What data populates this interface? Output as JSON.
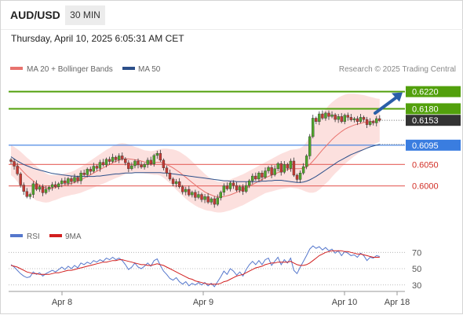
{
  "header": {
    "symbol": "AUD/USD",
    "timeframe": "30 MIN",
    "datetime": "Thursday, April 10, 2025 6:05:31 AM CET"
  },
  "colors": {
    "ma20": "#e8736e",
    "ma50": "#2c4f8a",
    "bands": "#fbd5d3",
    "resistance": "#52a00c",
    "pivot": "#3a7de0",
    "support": "#e8736e",
    "candle_up": "#4fa52a",
    "candle_down": "#c43a33",
    "rsi": "#5577cc",
    "rsi_ma": "#d21f1f",
    "arrow": "#2a5fa8",
    "price_tag": "#333333"
  },
  "chart_data": [
    {
      "type": "candlestick",
      "legend": [
        {
          "label": "MA 20 + Bollinger Bands",
          "color": "#e8736e"
        },
        {
          "label": "MA 50",
          "color": "#2c4f8a"
        }
      ],
      "watermark": "Research © 2025 Trading Central",
      "ylim": [
        0.5915,
        0.6245
      ],
      "x_ticks": [
        "Apr 8",
        "Apr 9",
        "Apr 10",
        "Apr 18"
      ],
      "levels": [
        {
          "value": 0.622,
          "label": "0.6220",
          "kind": "resistance"
        },
        {
          "value": 0.618,
          "label": "0.6180",
          "kind": "resistance"
        },
        {
          "value": 0.6095,
          "label": "0.6095",
          "kind": "pivot"
        },
        {
          "value": 0.605,
          "label": "0.6050",
          "kind": "support"
        },
        {
          "value": 0.6,
          "label": "0.6000",
          "kind": "support"
        }
      ],
      "last_price": {
        "value": 0.6153,
        "label": "0.6153"
      },
      "close": [
        0.6057,
        0.6046,
        0.6028,
        0.6002,
        0.5987,
        0.5975,
        0.598,
        0.6005,
        0.5992,
        0.5998,
        0.5984,
        0.5992,
        0.5997,
        0.6003,
        0.5998,
        0.6005,
        0.6012,
        0.6006,
        0.6017,
        0.601,
        0.602,
        0.6012,
        0.603,
        0.6026,
        0.6039,
        0.6034,
        0.6046,
        0.6041,
        0.6055,
        0.6049,
        0.6062,
        0.6057,
        0.6067,
        0.6061,
        0.607,
        0.6063,
        0.6054,
        0.604,
        0.6047,
        0.6058,
        0.6049,
        0.6044,
        0.605,
        0.606,
        0.6051,
        0.6071,
        0.6076,
        0.606,
        0.6042,
        0.603,
        0.6016,
        0.6005,
        0.601,
        0.5998,
        0.5986,
        0.5992,
        0.5979,
        0.5985,
        0.5973,
        0.598,
        0.5968,
        0.5975,
        0.5962,
        0.597,
        0.5957,
        0.5972,
        0.5985,
        0.6,
        0.5993,
        0.6007,
        0.6001,
        0.599,
        0.5998,
        0.5987,
        0.6001,
        0.6012,
        0.6023,
        0.6016,
        0.603,
        0.602,
        0.6035,
        0.6043,
        0.6026,
        0.604,
        0.6052,
        0.6032,
        0.605,
        0.6041,
        0.6058,
        0.6025,
        0.6015,
        0.603,
        0.6045,
        0.607,
        0.6115,
        0.6158,
        0.615,
        0.6168,
        0.6158,
        0.617,
        0.6162,
        0.6166,
        0.6155,
        0.6162,
        0.615,
        0.6165,
        0.616,
        0.6154,
        0.6157,
        0.615,
        0.616,
        0.6155,
        0.6143,
        0.615,
        0.6147,
        0.6157,
        0.6153
      ],
      "ma20": [
        0.606,
        0.6055,
        0.6048,
        0.604,
        0.6032,
        0.6024,
        0.6018,
        0.6012,
        0.6006,
        0.6002,
        0.5998,
        0.5995,
        0.5994,
        0.5995,
        0.5996,
        0.5998,
        0.6,
        0.6002,
        0.6004,
        0.6006,
        0.6008,
        0.6011,
        0.6014,
        0.6018,
        0.6022,
        0.6026,
        0.603,
        0.6034,
        0.6038,
        0.6042,
        0.6046,
        0.605,
        0.6054,
        0.6057,
        0.606,
        0.6062,
        0.6063,
        0.6063,
        0.6062,
        0.6061,
        0.606,
        0.6058,
        0.6056,
        0.6055,
        0.6054,
        0.6054,
        0.6055,
        0.6055,
        0.6053,
        0.605,
        0.6046,
        0.6042,
        0.6037,
        0.6032,
        0.6026,
        0.602,
        0.6014,
        0.6008,
        0.6002,
        0.5996,
        0.5991,
        0.5986,
        0.5982,
        0.5979,
        0.5976,
        0.5974,
        0.5974,
        0.5975,
        0.5977,
        0.5979,
        0.5982,
        0.5985,
        0.5988,
        0.5991,
        0.5995,
        0.5999,
        0.6003,
        0.6007,
        0.6011,
        0.6015,
        0.6019,
        0.6022,
        0.6025,
        0.6028,
        0.6031,
        0.6034,
        0.6036,
        0.6038,
        0.604,
        0.604,
        0.604,
        0.604,
        0.6041,
        0.6044,
        0.605,
        0.6058,
        0.6066,
        0.6075,
        0.6084,
        0.6092,
        0.61,
        0.6108,
        0.6115,
        0.6121,
        0.6127,
        0.6132,
        0.6136,
        0.6139,
        0.6142,
        0.6144,
        0.6146,
        0.6148,
        0.6149,
        0.615,
        0.6151,
        0.6152,
        0.6153
      ],
      "ma50": [
        0.6068,
        0.6063,
        0.6058,
        0.6054,
        0.605,
        0.6047,
        0.6044,
        0.6041,
        0.6039,
        0.6037,
        0.6035,
        0.6033,
        0.6031,
        0.6029,
        0.6028,
        0.6027,
        0.6026,
        0.6025,
        0.6024,
        0.6023,
        0.6023,
        0.6022,
        0.6022,
        0.6022,
        0.6022,
        0.6022,
        0.6022,
        0.6023,
        0.6023,
        0.6024,
        0.6025,
        0.6026,
        0.6027,
        0.6028,
        0.6028,
        0.6029,
        0.603,
        0.603,
        0.603,
        0.6031,
        0.6031,
        0.6031,
        0.6031,
        0.6031,
        0.6031,
        0.6031,
        0.6031,
        0.6031,
        0.603,
        0.603,
        0.6029,
        0.6028,
        0.6027,
        0.6026,
        0.6025,
        0.6024,
        0.6023,
        0.6022,
        0.6021,
        0.602,
        0.6019,
        0.6018,
        0.6017,
        0.6016,
        0.6015,
        0.6014,
        0.6013,
        0.6012,
        0.6012,
        0.6011,
        0.6011,
        0.601,
        0.601,
        0.601,
        0.601,
        0.601,
        0.601,
        0.601,
        0.601,
        0.6011,
        0.6011,
        0.6012,
        0.6012,
        0.6013,
        0.6013,
        0.6013,
        0.6012,
        0.6011,
        0.601,
        0.6009,
        0.6008,
        0.6008,
        0.6009,
        0.6011,
        0.6014,
        0.6018,
        0.6022,
        0.6027,
        0.6032,
        0.6037,
        0.6042,
        0.6047,
        0.6052,
        0.6057,
        0.6061,
        0.6065,
        0.6069,
        0.6073,
        0.6076,
        0.6079,
        0.6082,
        0.6085,
        0.6088,
        0.6091,
        0.6093,
        0.6095,
        0.6097
      ],
      "band_halfwidth": [
        0.0035,
        0.0036,
        0.0038,
        0.004,
        0.0041,
        0.0042,
        0.0042,
        0.0041,
        0.004,
        0.0038,
        0.0036,
        0.0034,
        0.0032,
        0.003,
        0.0029,
        0.0028,
        0.0027,
        0.0027,
        0.0027,
        0.0027,
        0.0028,
        0.0029,
        0.003,
        0.0031,
        0.0032,
        0.0033,
        0.0034,
        0.0035,
        0.0036,
        0.0037,
        0.0038,
        0.0038,
        0.0039,
        0.0039,
        0.0039,
        0.0038,
        0.0036,
        0.0034,
        0.0032,
        0.003,
        0.0029,
        0.0028,
        0.0027,
        0.0027,
        0.0027,
        0.0028,
        0.0029,
        0.0031,
        0.0034,
        0.0037,
        0.004,
        0.0043,
        0.0046,
        0.0048,
        0.0049,
        0.005,
        0.005,
        0.0049,
        0.0048,
        0.0046,
        0.0044,
        0.0042,
        0.004,
        0.0038,
        0.0037,
        0.0036,
        0.0036,
        0.0036,
        0.0036,
        0.0036,
        0.0036,
        0.0036,
        0.0036,
        0.0036,
        0.0036,
        0.0036,
        0.0036,
        0.0036,
        0.0036,
        0.0036,
        0.0036,
        0.0037,
        0.0038,
        0.0039,
        0.004,
        0.0041,
        0.0042,
        0.0043,
        0.0044,
        0.0045,
        0.0046,
        0.0048,
        0.0052,
        0.0058,
        0.0066,
        0.0074,
        0.008,
        0.0084,
        0.0086,
        0.0087,
        0.0088,
        0.0087,
        0.0086,
        0.0085,
        0.0083,
        0.0081,
        0.0079,
        0.0076,
        0.0073,
        0.007,
        0.0067,
        0.0064,
        0.0061,
        0.0058,
        0.0055,
        0.0052,
        0.005
      ]
    },
    {
      "type": "line",
      "legend": [
        {
          "label": "RSI",
          "color": "#5577cc"
        },
        {
          "label": "9MA",
          "color": "#d21f1f"
        }
      ],
      "ylim": [
        24,
        78
      ],
      "y_ticks": [
        70,
        50,
        30
      ],
      "rsi": [
        55,
        52,
        48,
        44,
        41,
        39,
        40,
        46,
        43,
        45,
        41,
        44,
        46,
        48,
        46,
        49,
        52,
        49,
        53,
        50,
        54,
        51,
        57,
        55,
        58,
        56,
        60,
        58,
        61,
        59,
        63,
        61,
        64,
        61,
        63,
        60,
        55,
        49,
        52,
        57,
        52,
        50,
        53,
        57,
        53,
        60,
        62,
        54,
        47,
        43,
        38,
        36,
        39,
        34,
        31,
        34,
        29,
        32,
        30,
        33,
        30,
        33,
        29,
        32,
        28,
        34,
        40,
        47,
        43,
        50,
        47,
        42,
        46,
        41,
        49,
        55,
        59,
        55,
        60,
        55,
        61,
        63,
        54,
        59,
        64,
        55,
        61,
        57,
        63,
        48,
        44,
        52,
        59,
        66,
        74,
        78,
        75,
        77,
        73,
        76,
        72,
        74,
        69,
        72,
        66,
        71,
        69,
        66,
        67,
        64,
        69,
        66,
        60,
        64,
        63,
        66,
        65
      ],
      "ma9": [
        54,
        53,
        52,
        50,
        48,
        46,
        45,
        44,
        44,
        43,
        43,
        43,
        43,
        44,
        45,
        45,
        46,
        47,
        48,
        48,
        49,
        50,
        51,
        52,
        53,
        54,
        55,
        56,
        57,
        58,
        58,
        59,
        60,
        60,
        61,
        61,
        60,
        59,
        58,
        57,
        56,
        55,
        55,
        54,
        54,
        55,
        56,
        55,
        54,
        52,
        50,
        48,
        46,
        44,
        42,
        40,
        38,
        37,
        35,
        34,
        33,
        32,
        31,
        31,
        31,
        31,
        32,
        34,
        35,
        37,
        39,
        41,
        42,
        43,
        45,
        47,
        49,
        51,
        52,
        53,
        55,
        56,
        57,
        57,
        58,
        58,
        58,
        58,
        59,
        57,
        55,
        54,
        54,
        55,
        57,
        60,
        63,
        66,
        68,
        70,
        71,
        72,
        72,
        72,
        72,
        71,
        71,
        70,
        69,
        68,
        68,
        67,
        66,
        65,
        64,
        64,
        64
      ]
    }
  ]
}
